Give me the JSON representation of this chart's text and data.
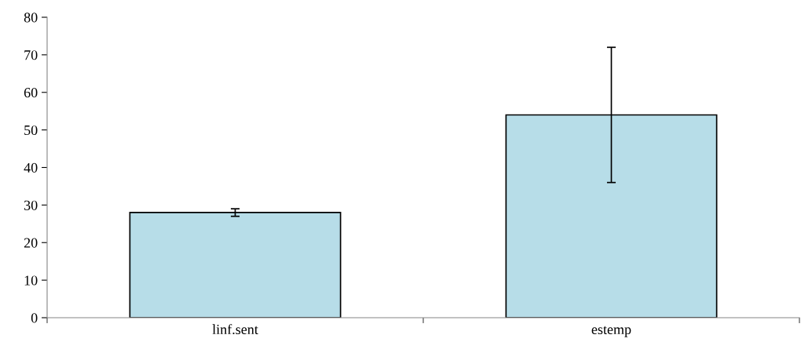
{
  "chart_data": {
    "type": "bar",
    "categories": [
      "linf.sent",
      "estemp"
    ],
    "values": [
      28,
      54
    ],
    "errors": [
      1,
      18
    ],
    "color": "#b7dde8",
    "ylim": [
      0,
      80
    ],
    "yticks": [
      0,
      10,
      20,
      30,
      40,
      50,
      60,
      70,
      80
    ],
    "grid": false
  }
}
